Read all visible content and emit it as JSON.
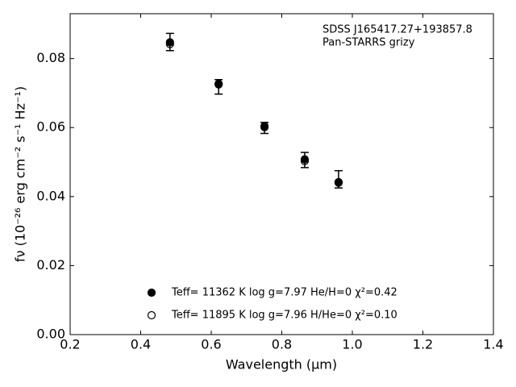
{
  "chart_data": {
    "type": "scatter",
    "x_label": "Wavelength (μm)",
    "y_label": "fν (10⁻²⁶ erg cm⁻² s⁻¹ Hz⁻¹)",
    "annotations": [
      "SDSS J165417.27+193857.8",
      "Pan-STARRS grizy"
    ],
    "x": [
      0.483,
      0.621,
      0.751,
      0.865,
      0.961
    ],
    "observed": {
      "values": [
        0.0848,
        0.0718,
        0.0599,
        0.0506,
        0.045
      ],
      "errors": [
        0.0025,
        0.0021,
        0.0016,
        0.0022,
        0.0025
      ],
      "color": "#000000"
    },
    "series": [
      {
        "name": "Teff= 11362 K  log g=7.97  He/H=0  χ²=0.42",
        "marker": "filled",
        "color": "#000000",
        "values": [
          0.0847,
          0.0727,
          0.0604,
          0.0508,
          0.0442
        ]
      },
      {
        "name": "Teff= 11895 K  log g=7.96  H/He=0  χ²=0.10",
        "marker": "open",
        "color": "#000000",
        "values": [
          0.0842,
          0.0725,
          0.0601,
          0.0503,
          0.044
        ]
      }
    ],
    "xlim": [
      0.2,
      1.4
    ],
    "ylim": [
      0,
      0.093
    ],
    "xticks": [
      0.2,
      0.4,
      0.6,
      0.8,
      {
        "value": 1,
        "label": "1.0"
      },
      1.2,
      1.4
    ],
    "yticks": [
      {
        "value": 0,
        "label": "0.00"
      },
      0.02,
      0.04,
      0.06,
      0.08
    ],
    "grid": false,
    "legend": "lower center"
  }
}
